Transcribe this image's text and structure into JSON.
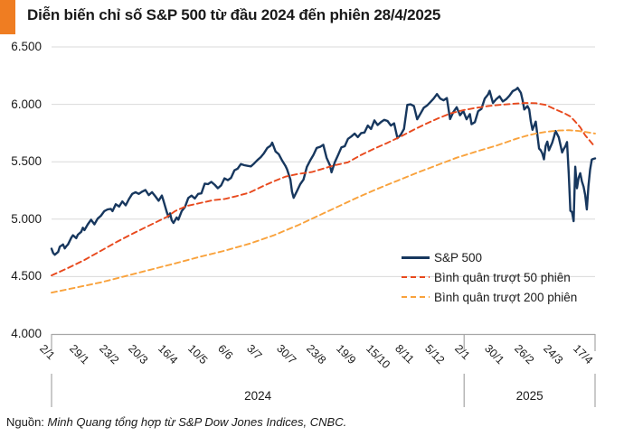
{
  "title": "Diễn biến chỉ số S&P 500 từ đầu 2024 đến phiên 28/4/2025",
  "source": {
    "prefix": "Nguồn:",
    "text": "Minh Quang tổng hợp từ S&P Dow Jones Indices, CNBC."
  },
  "colors": {
    "accent_orange": "#EF7D22",
    "sp500": "#17375E",
    "ma50": "#E8491D",
    "ma200": "#F9A23C",
    "gridline": "#D9D9D9",
    "axis": "#A6A6A6",
    "text": "#1A1A1A"
  },
  "chart_data": {
    "type": "line",
    "title": "Diễn biến chỉ số S&P 500 từ đầu 2024 đến phiên 28/4/2025",
    "grid": true,
    "legend_position": "inside-lower-right",
    "y_axis": {
      "min": 4000,
      "max": 6500,
      "step": 500,
      "tick_labels": [
        "6.500",
        "6.000",
        "5.500",
        "5.000",
        "4.500",
        "4.000"
      ]
    },
    "x_axis": {
      "unit": "trading-session",
      "domain": [
        0,
        330
      ],
      "sessions_per_tick": 18,
      "tick_labels": [
        "2/1",
        "29/1",
        "23/2",
        "20/3",
        "16/4",
        "10/5",
        "6/6",
        "3/7",
        "30/7",
        "23/8",
        "19/9",
        "15/10",
        "8/11",
        "5/12",
        "2/1",
        "30/1",
        "26/2",
        "24/3",
        "17/4"
      ],
      "year_groups": [
        {
          "label": "2024",
          "start_session": 0,
          "end_session": 250.5
        },
        {
          "label": "2025",
          "start_session": 250.5,
          "end_session": 330
        }
      ]
    },
    "series": [
      {
        "name": "S&P 500",
        "color": "#17375E",
        "style": "solid",
        "width": 2.4,
        "points": [
          [
            0,
            4743
          ],
          [
            1,
            4705
          ],
          [
            2,
            4690
          ],
          [
            4,
            4715
          ],
          [
            5,
            4760
          ],
          [
            7,
            4780
          ],
          [
            8,
            4745
          ],
          [
            9,
            4765
          ],
          [
            10,
            4780
          ],
          [
            12,
            4840
          ],
          [
            13,
            4860
          ],
          [
            15,
            4835
          ],
          [
            16,
            4865
          ],
          [
            18,
            4890
          ],
          [
            19,
            4925
          ],
          [
            20,
            4905
          ],
          [
            22,
            4955
          ],
          [
            24,
            4995
          ],
          [
            26,
            4955
          ],
          [
            28,
            5005
          ],
          [
            30,
            5030
          ],
          [
            32,
            5070
          ],
          [
            34,
            5085
          ],
          [
            36,
            5090
          ],
          [
            37,
            5070
          ],
          [
            39,
            5130
          ],
          [
            41,
            5110
          ],
          [
            43,
            5155
          ],
          [
            45,
            5120
          ],
          [
            47,
            5175
          ],
          [
            49,
            5220
          ],
          [
            51,
            5235
          ],
          [
            53,
            5220
          ],
          [
            55,
            5240
          ],
          [
            57,
            5254
          ],
          [
            59,
            5210
          ],
          [
            61,
            5235
          ],
          [
            63,
            5200
          ],
          [
            65,
            5160
          ],
          [
            67,
            5205
          ],
          [
            68,
            5160
          ],
          [
            70,
            5060
          ],
          [
            71,
            5020
          ],
          [
            72,
            5050
          ],
          [
            73,
            4990
          ],
          [
            74,
            4967
          ],
          [
            76,
            5015
          ],
          [
            77,
            4995
          ],
          [
            79,
            5070
          ],
          [
            81,
            5105
          ],
          [
            83,
            5185
          ],
          [
            85,
            5205
          ],
          [
            87,
            5180
          ],
          [
            89,
            5220
          ],
          [
            91,
            5225
          ],
          [
            93,
            5310
          ],
          [
            95,
            5305
          ],
          [
            97,
            5325
          ],
          [
            99,
            5300
          ],
          [
            101,
            5270
          ],
          [
            103,
            5295
          ],
          [
            105,
            5355
          ],
          [
            107,
            5340
          ],
          [
            109,
            5360
          ],
          [
            111,
            5425
          ],
          [
            113,
            5440
          ],
          [
            115,
            5480
          ],
          [
            117,
            5470
          ],
          [
            119,
            5465
          ],
          [
            121,
            5460
          ],
          [
            123,
            5485
          ],
          [
            125,
            5515
          ],
          [
            127,
            5540
          ],
          [
            129,
            5575
          ],
          [
            131,
            5620
          ],
          [
            133,
            5640
          ],
          [
            134,
            5667
          ],
          [
            136,
            5590
          ],
          [
            138,
            5565
          ],
          [
            140,
            5510
          ],
          [
            142,
            5465
          ],
          [
            143,
            5435
          ],
          [
            145,
            5345
          ],
          [
            146,
            5240
          ],
          [
            147,
            5186
          ],
          [
            149,
            5245
          ],
          [
            151,
            5305
          ],
          [
            153,
            5345
          ],
          [
            155,
            5455
          ],
          [
            157,
            5510
          ],
          [
            159,
            5560
          ],
          [
            161,
            5620
          ],
          [
            163,
            5630
          ],
          [
            165,
            5648
          ],
          [
            167,
            5535
          ],
          [
            169,
            5470
          ],
          [
            170,
            5408
          ],
          [
            172,
            5495
          ],
          [
            174,
            5560
          ],
          [
            176,
            5625
          ],
          [
            178,
            5635
          ],
          [
            180,
            5700
          ],
          [
            182,
            5720
          ],
          [
            184,
            5745
          ],
          [
            186,
            5715
          ],
          [
            188,
            5750
          ],
          [
            190,
            5755
          ],
          [
            192,
            5815
          ],
          [
            194,
            5785
          ],
          [
            196,
            5860
          ],
          [
            198,
            5820
          ],
          [
            200,
            5845
          ],
          [
            202,
            5865
          ],
          [
            204,
            5855
          ],
          [
            206,
            5815
          ],
          [
            208,
            5835
          ],
          [
            210,
            5705
          ],
          [
            212,
            5735
          ],
          [
            214,
            5785
          ],
          [
            216,
            5995
          ],
          [
            218,
            6000
          ],
          [
            220,
            5985
          ],
          [
            222,
            5870
          ],
          [
            224,
            5920
          ],
          [
            226,
            5970
          ],
          [
            228,
            5990
          ],
          [
            230,
            6020
          ],
          [
            232,
            6050
          ],
          [
            234,
            6090
          ],
          [
            236,
            6050
          ],
          [
            238,
            6035
          ],
          [
            240,
            6055
          ],
          [
            242,
            5872
          ],
          [
            244,
            5935
          ],
          [
            246,
            5975
          ],
          [
            248,
            5905
          ],
          [
            250,
            5942
          ],
          [
            252,
            5870
          ],
          [
            254,
            5915
          ],
          [
            255,
            5827
          ],
          [
            257,
            5845
          ],
          [
            259,
            5940
          ],
          [
            261,
            5960
          ],
          [
            263,
            6050
          ],
          [
            265,
            6085
          ],
          [
            266,
            6118
          ],
          [
            268,
            6012
          ],
          [
            270,
            6045
          ],
          [
            272,
            6070
          ],
          [
            274,
            6025
          ],
          [
            276,
            6045
          ],
          [
            278,
            6075
          ],
          [
            280,
            6115
          ],
          [
            282,
            6130
          ],
          [
            283,
            6144
          ],
          [
            285,
            6100
          ],
          [
            286,
            6035
          ],
          [
            287,
            5955
          ],
          [
            289,
            5985
          ],
          [
            290,
            5955
          ],
          [
            291,
            5850
          ],
          [
            292,
            5778
          ],
          [
            294,
            5850
          ],
          [
            296,
            5615
          ],
          [
            297,
            5600
          ],
          [
            298,
            5572
          ],
          [
            299,
            5521
          ],
          [
            300,
            5639
          ],
          [
            301,
            5675
          ],
          [
            302,
            5600
          ],
          [
            304,
            5665
          ],
          [
            305,
            5715
          ],
          [
            306,
            5768
          ],
          [
            308,
            5712
          ],
          [
            310,
            5581
          ],
          [
            311,
            5612
          ],
          [
            312,
            5635
          ],
          [
            313,
            5671
          ],
          [
            314,
            5396
          ],
          [
            315,
            5074
          ],
          [
            316,
            5062
          ],
          [
            317,
            4983
          ],
          [
            318,
            5457
          ],
          [
            319,
            5270
          ],
          [
            320,
            5360
          ],
          [
            321,
            5400
          ],
          [
            322,
            5330
          ],
          [
            323,
            5283
          ],
          [
            324,
            5210
          ],
          [
            325,
            5085
          ],
          [
            326,
            5290
          ],
          [
            327,
            5430
          ],
          [
            328,
            5520
          ],
          [
            329,
            5525
          ],
          [
            330,
            5529
          ]
        ]
      },
      {
        "name": "Bình quân trượt 50 phiên",
        "color": "#E8491D",
        "style": "dashed",
        "width": 1.9,
        "points": [
          [
            0,
            4510
          ],
          [
            10,
            4575
          ],
          [
            20,
            4645
          ],
          [
            30,
            4725
          ],
          [
            40,
            4805
          ],
          [
            50,
            4880
          ],
          [
            60,
            4950
          ],
          [
            70,
            5020
          ],
          [
            75,
            5070
          ],
          [
            82,
            5115
          ],
          [
            90,
            5140
          ],
          [
            98,
            5165
          ],
          [
            105,
            5175
          ],
          [
            112,
            5200
          ],
          [
            120,
            5230
          ],
          [
            128,
            5285
          ],
          [
            135,
            5330
          ],
          [
            142,
            5370
          ],
          [
            150,
            5395
          ],
          [
            158,
            5410
          ],
          [
            165,
            5440
          ],
          [
            172,
            5470
          ],
          [
            180,
            5495
          ],
          [
            188,
            5560
          ],
          [
            196,
            5615
          ],
          [
            204,
            5665
          ],
          [
            212,
            5720
          ],
          [
            220,
            5780
          ],
          [
            228,
            5835
          ],
          [
            235,
            5880
          ],
          [
            242,
            5920
          ],
          [
            250,
            5950
          ],
          [
            258,
            5970
          ],
          [
            265,
            5985
          ],
          [
            272,
            5995
          ],
          [
            280,
            6005
          ],
          [
            288,
            6012
          ],
          [
            294,
            6010
          ],
          [
            300,
            5995
          ],
          [
            306,
            5955
          ],
          [
            311,
            5925
          ],
          [
            315,
            5895
          ],
          [
            318,
            5850
          ],
          [
            321,
            5800
          ],
          [
            324,
            5730
          ],
          [
            327,
            5680
          ],
          [
            330,
            5628
          ]
        ]
      },
      {
        "name": "Bình quân trượt 200 phiên",
        "color": "#F9A23C",
        "style": "dashed",
        "width": 1.9,
        "points": [
          [
            0,
            4360
          ],
          [
            15,
            4405
          ],
          [
            30,
            4450
          ],
          [
            45,
            4505
          ],
          [
            60,
            4560
          ],
          [
            75,
            4615
          ],
          [
            90,
            4672
          ],
          [
            105,
            4725
          ],
          [
            120,
            4785
          ],
          [
            135,
            4860
          ],
          [
            150,
            4950
          ],
          [
            162,
            5030
          ],
          [
            174,
            5110
          ],
          [
            186,
            5190
          ],
          [
            198,
            5265
          ],
          [
            210,
            5335
          ],
          [
            222,
            5405
          ],
          [
            234,
            5470
          ],
          [
            246,
            5535
          ],
          [
            258,
            5590
          ],
          [
            270,
            5640
          ],
          [
            276,
            5670
          ],
          [
            282,
            5700
          ],
          [
            288,
            5725
          ],
          [
            294,
            5745
          ],
          [
            300,
            5760
          ],
          [
            308,
            5772
          ],
          [
            314,
            5775
          ],
          [
            320,
            5768
          ],
          [
            325,
            5758
          ],
          [
            330,
            5746
          ]
        ]
      }
    ]
  }
}
